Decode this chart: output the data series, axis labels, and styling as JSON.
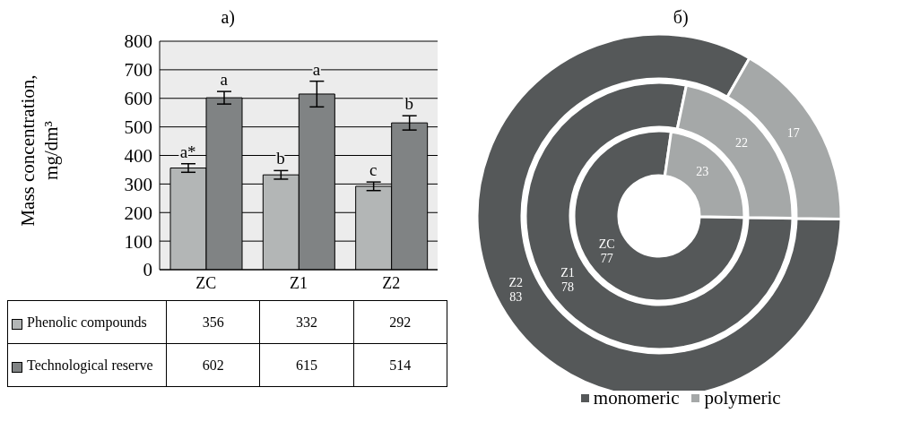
{
  "chart_data": [
    {
      "type": "bar",
      "title": "a)",
      "ylabel": "Mass concentration, mg/dm³",
      "categories": [
        "ZC",
        "Z1",
        "Z2"
      ],
      "series": [
        {
          "name": "Phenolic compounds",
          "color": "#b3b6b6",
          "values": [
            356,
            332,
            292
          ],
          "errors": [
            15,
            15,
            15
          ]
        },
        {
          "name": "Technological reserve",
          "color": "#808384",
          "values": [
            602,
            615,
            514
          ],
          "errors": [
            22,
            45,
            25
          ]
        }
      ],
      "ylim": [
        0,
        800
      ],
      "yticks": [
        0,
        100,
        200,
        300,
        400,
        500,
        600,
        700,
        800
      ],
      "grid": "y",
      "legend": "bottom",
      "data_labels": true,
      "annotations": [
        {
          "text": "a*",
          "x": "ZC",
          "y": 356
        },
        {
          "text": "a",
          "x": "ZC",
          "y": 602
        },
        {
          "text": "b",
          "x": "Z1",
          "y": 332
        },
        {
          "text": "a",
          "x": "Z1",
          "y": 615
        },
        {
          "text": "c",
          "x": "Z2",
          "y": 292
        },
        {
          "text": "b",
          "x": "Z2",
          "y": 514
        }
      ]
    },
    {
      "type": "donut",
      "title": "б)",
      "categories": [
        "monomeric",
        "polymeric"
      ],
      "colors": [
        "#555859",
        "#a5a8a8"
      ],
      "series": [
        {
          "name": "ZC",
          "values": [
            77,
            23
          ]
        },
        {
          "name": "Z1",
          "values": [
            78,
            22
          ]
        },
        {
          "name": "Z2",
          "values": [
            83,
            17
          ]
        }
      ],
      "data_labels": true,
      "legend": "bottom"
    }
  ]
}
